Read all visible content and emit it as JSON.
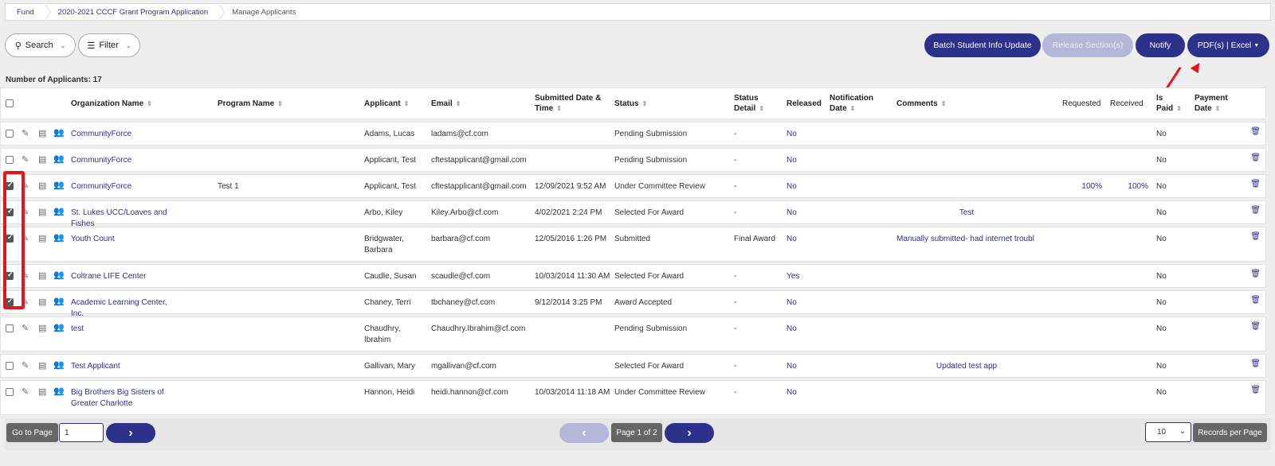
{
  "breadcrumb": [
    "Fund",
    "2020-2021 CCCF Grant Program Application",
    "Manage Applicants"
  ],
  "toolbar": {
    "search_label": "Search",
    "filter_label": "Filter",
    "batch_label": "Batch Student Info Update",
    "release_label": "Release Section(s)",
    "notify_label": "Notify",
    "pdf_label": "PDF(s) | Excel"
  },
  "count_label": "Number of Applicants: 17",
  "columns": {
    "org": "Organization Name",
    "program": "Program Name",
    "applicant": "Applicant",
    "email": "Email",
    "submitted": "Submitted Date & Time",
    "status": "Status",
    "status_detail": "Status Detail",
    "released": "Released",
    "notification": "Notification Date",
    "comments": "Comments",
    "requested": "Requested",
    "received": "Received",
    "is_paid": "Is Paid",
    "payment_date": "Payment Date"
  },
  "rows": [
    {
      "checked": false,
      "org": "CommunityForce",
      "program": "",
      "applicant": "Adams, Lucas",
      "email": "ladams@cf.com",
      "submitted": "",
      "status": "Pending Submission",
      "detail": "-",
      "released": "No",
      "comment": "",
      "requested": "",
      "received": "",
      "paid": "No"
    },
    {
      "checked": false,
      "org": "CommunityForce",
      "program": "",
      "applicant": "Applicant, Test",
      "email": "cftestapplicant@gmail.com",
      "submitted": "",
      "status": "Pending Submission",
      "detail": "-",
      "released": "No",
      "comment": "",
      "requested": "",
      "received": "",
      "paid": "No"
    },
    {
      "checked": true,
      "org": "CommunityForce",
      "program": "Test 1",
      "applicant": "Applicant, Test",
      "email": "cftestapplicant@gmail.com",
      "submitted": "12/09/2021 9:52 AM",
      "status": "Under Committee Review",
      "detail": "-",
      "released": "No",
      "comment": "",
      "requested": "100%",
      "received": "100%",
      "paid": "No"
    },
    {
      "checked": true,
      "org": "St. Lukes UCC/Loaves and Fishes",
      "program": "",
      "applicant": "Arbo, Kiley",
      "email": "Kiley.Arbo@cf.com",
      "submitted": "4/02/2021 2:24 PM",
      "status": "Selected For Award",
      "detail": "-",
      "released": "No",
      "comment": "Test",
      "requested": "",
      "received": "",
      "paid": "No"
    },
    {
      "checked": true,
      "org": "Youth Count",
      "program": "",
      "applicant": "Bridgwater, Barbara",
      "email": "barbara@cf.com",
      "submitted": "12/05/2016 1:26 PM",
      "status": "Submitted",
      "detail": "Final Award",
      "released": "No",
      "comment": "Manually submitted- had internet troubl",
      "requested": "",
      "received": "",
      "paid": "No"
    },
    {
      "checked": true,
      "org": "Coltrane LIFE Center",
      "program": "",
      "applicant": "Caudle, Susan",
      "email": "scaudle@cf.com",
      "submitted": "10/03/2014 11:30 AM",
      "status": "Selected For Award",
      "detail": "-",
      "released": "Yes",
      "comment": "",
      "requested": "",
      "received": "",
      "paid": "No"
    },
    {
      "checked": true,
      "org": "Academic Learning Center, Inc.",
      "program": "",
      "applicant": "Chaney, Terri",
      "email": "tbchaney@cf.com",
      "submitted": "9/12/2014 3:25 PM",
      "status": "Award Accepted",
      "detail": "-",
      "released": "No",
      "comment": "",
      "requested": "",
      "received": "",
      "paid": "No"
    },
    {
      "checked": false,
      "org": "test",
      "program": "",
      "applicant": "Chaudhry, Ibrahim",
      "email": "Chaudhry.Ibrahim@cf.com",
      "submitted": "",
      "status": "Pending Submission",
      "detail": "-",
      "released": "No",
      "comment": "",
      "requested": "",
      "received": "",
      "paid": "No"
    },
    {
      "checked": false,
      "org": "Test Applicant",
      "program": "",
      "applicant": "Gallivan, Mary",
      "email": "mgallivan@cf.com",
      "submitted": "",
      "status": "Selected For Award",
      "detail": "-",
      "released": "No",
      "comment": "Updated test app",
      "requested": "",
      "received": "",
      "paid": "No"
    },
    {
      "checked": false,
      "org": "Big Brothers Big Sisters of Greater Charlotte",
      "program": "",
      "applicant": "Hannon, Heidi",
      "email": "heidi.hannon@cf.com",
      "submitted": "10/03/2014 11:18 AM",
      "status": "Under Committee Review",
      "detail": "-",
      "released": "No",
      "comment": "",
      "requested": "",
      "received": "",
      "paid": "No"
    }
  ],
  "pager": {
    "goto_label": "Go to Page",
    "page_value": "1",
    "page_label": "Page 1 of 2",
    "per_page_value": "10",
    "per_page_label": "Records per Page"
  },
  "colors": {
    "accent": "#2e3189",
    "highlight": "#e8141b"
  }
}
